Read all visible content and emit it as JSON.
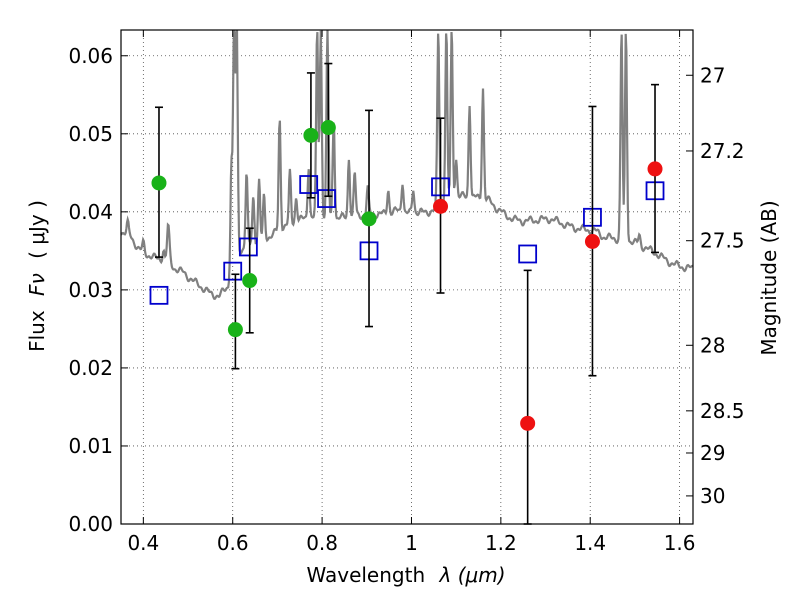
{
  "chart_data": {
    "type": "scatter",
    "title": "",
    "xlabel": "Wavelength",
    "xlabel_symbol": "λ (μm)",
    "ylabel": "Flux",
    "ylabel_symbol": "Fν",
    "ylabel_unit": "( μJy )",
    "ylabel_right": "Magnitude (AB)",
    "xlim": [
      0.35,
      1.63
    ],
    "ylim": [
      0.0,
      0.0633
    ],
    "xticks": [
      0.4,
      0.6,
      0.8,
      1.0,
      1.2,
      1.4,
      1.6
    ],
    "xtick_labels": [
      "0.4",
      "0.6",
      "0.8",
      "1",
      "1.2",
      "1.4",
      "1.6"
    ],
    "yticks": [
      0.0,
      0.01,
      0.02,
      0.03,
      0.04,
      0.05,
      0.06
    ],
    "ytick_labels": [
      "0.00",
      "0.01",
      "0.02",
      "0.03",
      "0.04",
      "0.05",
      "0.06"
    ],
    "right_ticks": [
      {
        "label": "27",
        "flux": 0.0575
      },
      {
        "label": "27.2",
        "flux": 0.0478
      },
      {
        "label": "27.5",
        "flux": 0.0363
      },
      {
        "label": "28",
        "flux": 0.0229
      },
      {
        "label": "28.5",
        "flux": 0.0145
      },
      {
        "label": "29",
        "flux": 0.0091
      },
      {
        "label": "30",
        "flux": 0.0036
      }
    ],
    "grid": true,
    "colors": {
      "green": "#19b219",
      "red": "#ee1111",
      "blue": "#0000cc",
      "spectrum": "#808080",
      "errorbar": "#000000"
    },
    "series": [
      {
        "name": "detections",
        "marker": "circle",
        "color": "green",
        "points": [
          {
            "x": 0.435,
            "y": 0.0437,
            "err_low": 0.0342,
            "err_high": 0.0534
          },
          {
            "x": 0.606,
            "y": 0.0249,
            "err_low": 0.0199,
            "err_high": 0.032
          },
          {
            "x": 0.638,
            "y": 0.0312,
            "err_low": 0.0245,
            "err_high": 0.0379
          },
          {
            "x": 0.775,
            "y": 0.0498,
            "err_low": 0.0418,
            "err_high": 0.0578
          },
          {
            "x": 0.814,
            "y": 0.0508,
            "err_low": 0.042,
            "err_high": 0.059
          },
          {
            "x": 0.905,
            "y": 0.0391,
            "err_low": 0.0253,
            "err_high": 0.053
          }
        ]
      },
      {
        "name": "nir",
        "marker": "circle",
        "color": "red",
        "points": [
          {
            "x": 1.065,
            "y": 0.0407,
            "err_low": 0.0296,
            "err_high": 0.052
          },
          {
            "x": 1.26,
            "y": 0.0129,
            "err_low": 0.0,
            "err_high": 0.0325
          },
          {
            "x": 1.405,
            "y": 0.0362,
            "err_low": 0.019,
            "err_high": 0.0535
          },
          {
            "x": 1.545,
            "y": 0.0455,
            "err_low": 0.0348,
            "err_high": 0.0563
          }
        ]
      },
      {
        "name": "model",
        "marker": "square",
        "color": "blue",
        "points": [
          {
            "x": 0.435,
            "y": 0.0293
          },
          {
            "x": 0.6,
            "y": 0.0324
          },
          {
            "x": 0.635,
            "y": 0.0355
          },
          {
            "x": 0.77,
            "y": 0.0435
          },
          {
            "x": 0.81,
            "y": 0.0417
          },
          {
            "x": 0.905,
            "y": 0.035
          },
          {
            "x": 1.065,
            "y": 0.0432
          },
          {
            "x": 1.26,
            "y": 0.0346
          },
          {
            "x": 1.405,
            "y": 0.0393
          },
          {
            "x": 1.545,
            "y": 0.0427
          }
        ]
      }
    ],
    "spectrum": {
      "continuum": [
        [
          0.35,
          0.0375
        ],
        [
          0.37,
          0.037
        ],
        [
          0.39,
          0.0352
        ],
        [
          0.41,
          0.0345
        ],
        [
          0.43,
          0.034
        ],
        [
          0.45,
          0.0338
        ],
        [
          0.47,
          0.0328
        ],
        [
          0.49,
          0.0322
        ],
        [
          0.51,
          0.0312
        ],
        [
          0.53,
          0.0304
        ],
        [
          0.55,
          0.0295
        ],
        [
          0.57,
          0.0292
        ],
        [
          0.59,
          0.0305
        ],
        [
          0.61,
          0.0348
        ],
        [
          0.63,
          0.0356
        ],
        [
          0.65,
          0.0362
        ],
        [
          0.67,
          0.0365
        ],
        [
          0.69,
          0.0371
        ],
        [
          0.71,
          0.038
        ],
        [
          0.73,
          0.0385
        ],
        [
          0.75,
          0.039
        ],
        [
          0.77,
          0.0392
        ],
        [
          0.79,
          0.0394
        ],
        [
          0.81,
          0.0395
        ],
        [
          0.83,
          0.0392
        ],
        [
          0.85,
          0.0393
        ],
        [
          0.87,
          0.0394
        ],
        [
          0.89,
          0.0396
        ],
        [
          0.91,
          0.0398
        ],
        [
          0.93,
          0.0397
        ],
        [
          0.95,
          0.0398
        ],
        [
          0.97,
          0.0402
        ],
        [
          0.99,
          0.0398
        ],
        [
          1.01,
          0.04
        ],
        [
          1.03,
          0.0399
        ],
        [
          1.05,
          0.0402
        ],
        [
          1.07,
          0.041
        ],
        [
          1.09,
          0.0418
        ],
        [
          1.11,
          0.042
        ],
        [
          1.13,
          0.0419
        ],
        [
          1.15,
          0.0418
        ],
        [
          1.17,
          0.0416
        ],
        [
          1.19,
          0.0405
        ],
        [
          1.21,
          0.0396
        ],
        [
          1.23,
          0.039
        ],
        [
          1.25,
          0.0388
        ],
        [
          1.27,
          0.0389
        ],
        [
          1.29,
          0.039
        ],
        [
          1.31,
          0.0391
        ],
        [
          1.33,
          0.0387
        ],
        [
          1.35,
          0.0382
        ],
        [
          1.37,
          0.0379
        ],
        [
          1.39,
          0.0377
        ],
        [
          1.41,
          0.0376
        ],
        [
          1.43,
          0.0368
        ],
        [
          1.45,
          0.0366
        ],
        [
          1.47,
          0.0365
        ],
        [
          1.49,
          0.0363
        ],
        [
          1.51,
          0.0358
        ],
        [
          1.53,
          0.0352
        ],
        [
          1.55,
          0.0346
        ],
        [
          1.57,
          0.0338
        ],
        [
          1.59,
          0.0332
        ],
        [
          1.61,
          0.0329
        ],
        [
          1.63,
          0.0327
        ]
      ],
      "lines": [
        {
          "x": 0.365,
          "peak": 0.0385
        },
        {
          "x": 0.4,
          "peak": 0.036
        },
        {
          "x": 0.445,
          "peak": 0.0352
        },
        {
          "x": 0.455,
          "peak": 0.0375
        },
        {
          "x": 0.458,
          "peak": 0.035
        },
        {
          "x": 0.597,
          "peak": 0.046
        },
        {
          "x": 0.603,
          "peak": 0.0633
        },
        {
          "x": 0.609,
          "peak": 0.0633
        },
        {
          "x": 0.631,
          "peak": 0.045
        },
        {
          "x": 0.646,
          "peak": 0.042
        },
        {
          "x": 0.659,
          "peak": 0.044
        },
        {
          "x": 0.67,
          "peak": 0.042
        },
        {
          "x": 0.705,
          "peak": 0.052
        },
        {
          "x": 0.728,
          "peak": 0.045
        },
        {
          "x": 0.742,
          "peak": 0.042
        },
        {
          "x": 0.77,
          "peak": 0.046
        },
        {
          "x": 0.789,
          "peak": 0.0633
        },
        {
          "x": 0.797,
          "peak": 0.0633
        },
        {
          "x": 0.812,
          "peak": 0.0633
        },
        {
          "x": 0.826,
          "peak": 0.052
        },
        {
          "x": 0.86,
          "peak": 0.047
        },
        {
          "x": 0.873,
          "peak": 0.045
        },
        {
          "x": 0.902,
          "peak": 0.043
        },
        {
          "x": 0.948,
          "peak": 0.043
        },
        {
          "x": 0.98,
          "peak": 0.044
        },
        {
          "x": 1.004,
          "peak": 0.043
        },
        {
          "x": 1.06,
          "peak": 0.0633
        },
        {
          "x": 1.078,
          "peak": 0.0633
        },
        {
          "x": 1.09,
          "peak": 0.0633
        },
        {
          "x": 1.1,
          "peak": 0.047
        },
        {
          "x": 1.13,
          "peak": 0.054
        },
        {
          "x": 1.16,
          "peak": 0.056
        },
        {
          "x": 1.47,
          "peak": 0.0633
        },
        {
          "x": 1.48,
          "peak": 0.0633
        },
        {
          "x": 1.51,
          "peak": 0.037
        }
      ]
    }
  }
}
